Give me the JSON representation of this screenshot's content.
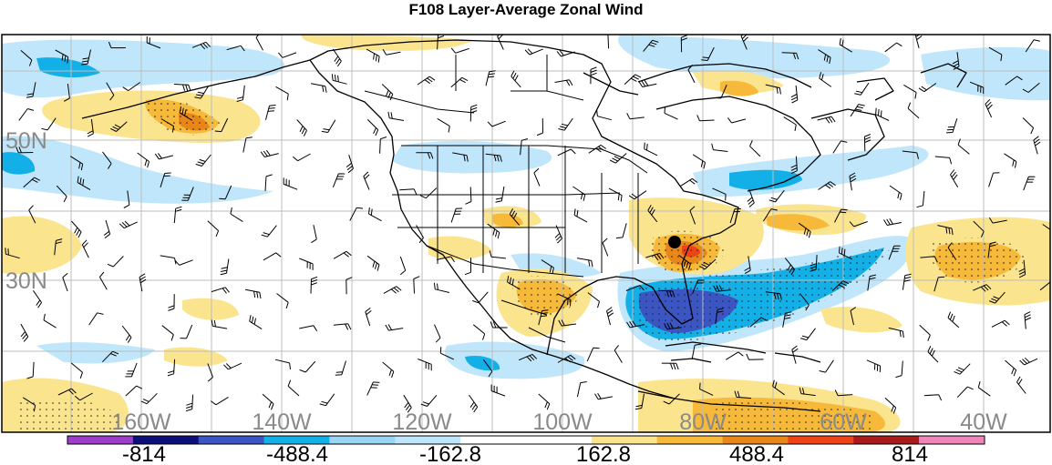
{
  "title": "F108 Layer-Average Zonal Wind",
  "latitude_labels": [
    "50N",
    "30N"
  ],
  "longitude_labels": [
    "160W",
    "140W",
    "120W",
    "100W",
    "80W",
    "60W",
    "40W"
  ],
  "colorbar": {
    "colors": [
      "#9b3ec8",
      "#0e0e78",
      "#3b55c2",
      "#13b0e8",
      "#9ad5f4",
      "#bfe6fa",
      "#ffffff",
      "#ffffff",
      "#fbe48e",
      "#f6b93a",
      "#e9861a",
      "#ed4316",
      "#a81b1b",
      "#ee86ba"
    ],
    "labels": [
      "-814",
      "-488.4",
      "-162.8",
      "162.8",
      "488.4",
      "814"
    ]
  },
  "marker": "station-dot"
}
